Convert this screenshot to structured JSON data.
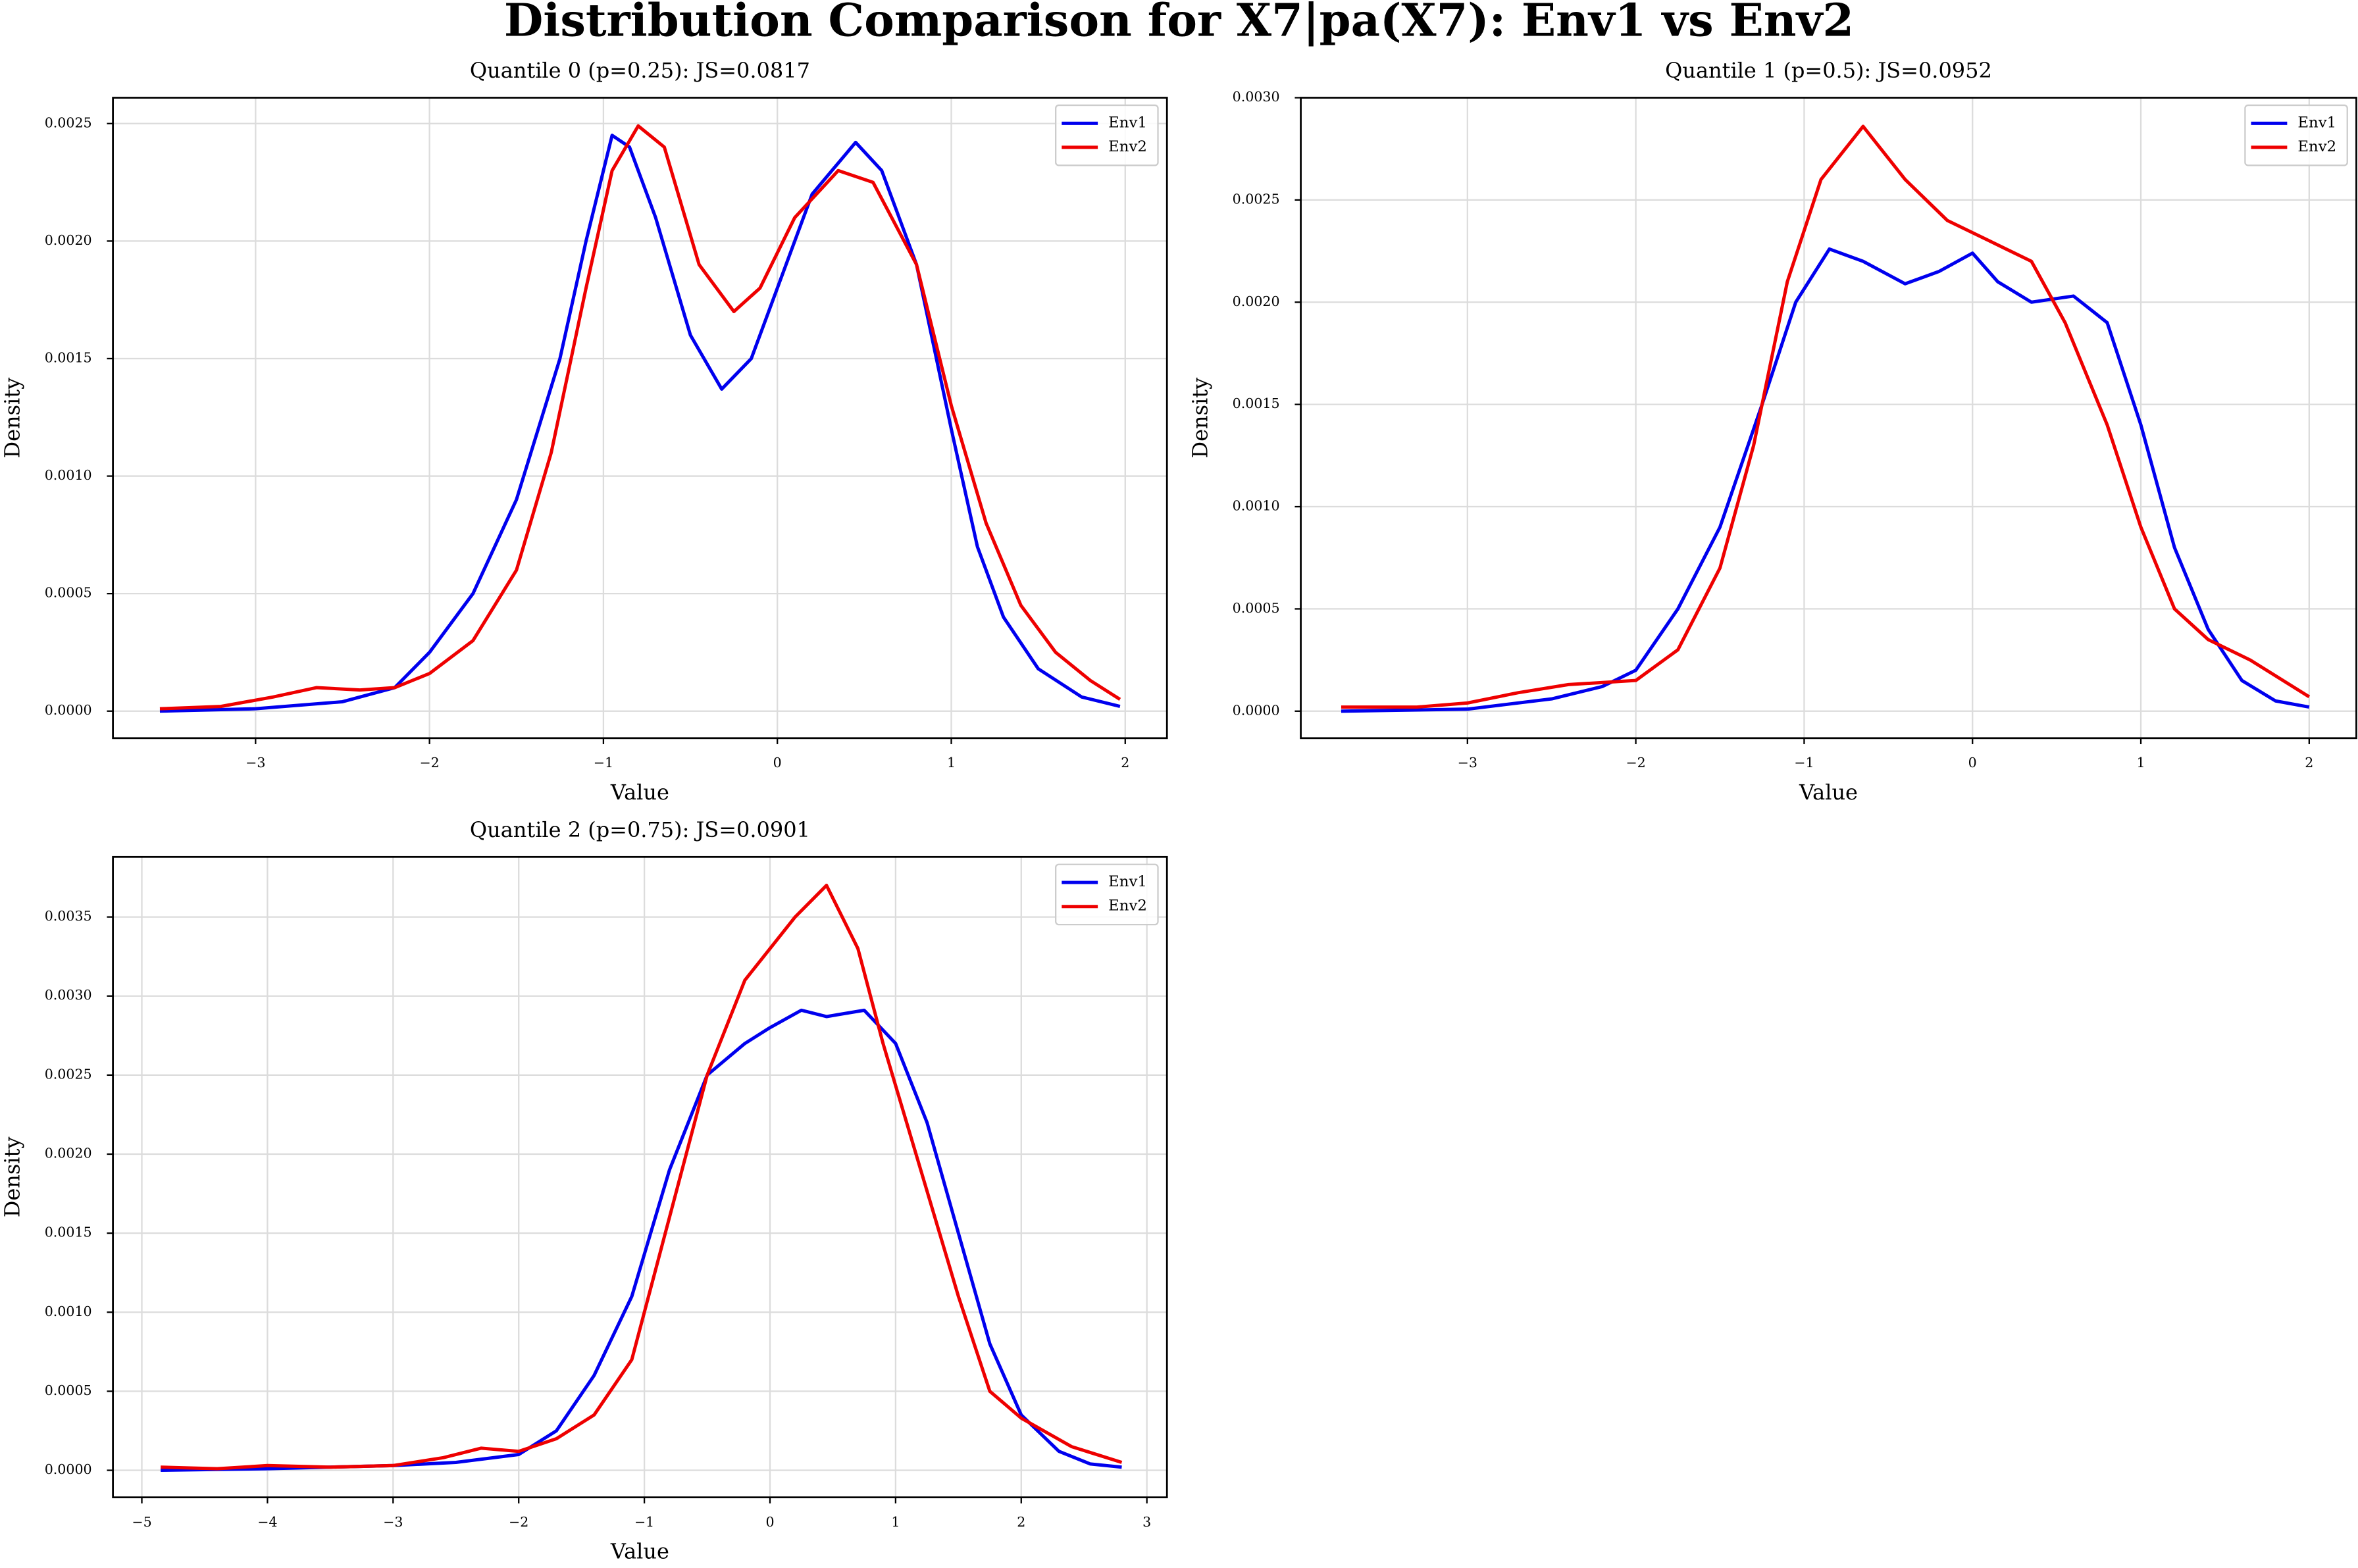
{
  "title": "Distribution Comparison for X7|pa(X7): Env1 vs Env2",
  "chart_data": [
    {
      "type": "line",
      "title": "Quantile 0 (p=0.25): JS=0.0817",
      "xlabel": "Value",
      "ylabel": "Density",
      "grid": true,
      "legend": "upper right",
      "xlim": [
        -3.82,
        2.24
      ],
      "ylim": [
        -0.000115,
        0.00261
      ],
      "xticks": [
        {
          "value": -3,
          "label": "−3"
        },
        {
          "value": -2,
          "label": "−2"
        },
        {
          "value": -1,
          "label": "−1"
        },
        0,
        1,
        2
      ],
      "yticks": [
        {
          "value": 0,
          "label": "0.0000"
        },
        {
          "value": 0.0005,
          "label": "0.0005"
        },
        {
          "value": 0.001,
          "label": "0.0010"
        },
        {
          "value": 0.0015,
          "label": "0.0015"
        },
        {
          "value": 0.002,
          "label": "0.0020"
        },
        {
          "value": 0.0025,
          "label": "0.0025"
        }
      ],
      "series": [
        {
          "name": "Env1",
          "color": "#0000ee",
          "x": [
            -3.55,
            -3.0,
            -2.5,
            -2.2,
            -2.0,
            -1.75,
            -1.5,
            -1.25,
            -1.1,
            -0.95,
            -0.85,
            -0.7,
            -0.5,
            -0.32,
            -0.15,
            0.0,
            0.2,
            0.45,
            0.6,
            0.8,
            1.0,
            1.15,
            1.3,
            1.5,
            1.75,
            1.97
          ],
          "values": [
            0.0,
            1e-05,
            4e-05,
            0.0001,
            0.00025,
            0.0005,
            0.0009,
            0.0015,
            0.002,
            0.00245,
            0.0024,
            0.0021,
            0.0016,
            0.00137,
            0.0015,
            0.0018,
            0.0022,
            0.00242,
            0.0023,
            0.0019,
            0.0012,
            0.0007,
            0.0004,
            0.00018,
            6e-05,
            2e-05
          ]
        },
        {
          "name": "Env2",
          "color": "#ee0000",
          "x": [
            -3.55,
            -3.2,
            -2.9,
            -2.65,
            -2.4,
            -2.2,
            -2.0,
            -1.75,
            -1.5,
            -1.3,
            -1.1,
            -0.95,
            -0.8,
            -0.65,
            -0.45,
            -0.25,
            -0.1,
            0.1,
            0.35,
            0.55,
            0.8,
            1.0,
            1.2,
            1.4,
            1.6,
            1.8,
            1.97
          ],
          "values": [
            1e-05,
            2e-05,
            6e-05,
            0.0001,
            9e-05,
            0.0001,
            0.00016,
            0.0003,
            0.0006,
            0.0011,
            0.0018,
            0.0023,
            0.00249,
            0.0024,
            0.0019,
            0.0017,
            0.0018,
            0.0021,
            0.0023,
            0.00225,
            0.0019,
            0.0013,
            0.0008,
            0.00045,
            0.00025,
            0.00013,
            5e-05
          ]
        }
      ]
    },
    {
      "type": "line",
      "title": "Quantile 1 (p=0.5): JS=0.0952",
      "xlabel": "Value",
      "ylabel": "Density",
      "grid": true,
      "legend": "upper right",
      "xlim": [
        -3.99,
        2.28
      ],
      "ylim": [
        -0.000132,
        0.003
      ],
      "xticks": [
        {
          "value": -3,
          "label": "−3"
        },
        {
          "value": -2,
          "label": "−2"
        },
        {
          "value": -1,
          "label": "−1"
        },
        0,
        1,
        2
      ],
      "yticks": [
        {
          "value": 0,
          "label": "0.0000"
        },
        {
          "value": 0.0005,
          "label": "0.0005"
        },
        {
          "value": 0.001,
          "label": "0.0010"
        },
        {
          "value": 0.0015,
          "label": "0.0015"
        },
        {
          "value": 0.002,
          "label": "0.0020"
        },
        {
          "value": 0.0025,
          "label": "0.0025"
        },
        {
          "value": 0.003,
          "label": "0.0030"
        }
      ],
      "series": [
        {
          "name": "Env1",
          "color": "#0000ee",
          "x": [
            -3.75,
            -3.0,
            -2.5,
            -2.2,
            -2.0,
            -1.75,
            -1.5,
            -1.25,
            -1.05,
            -0.85,
            -0.65,
            -0.4,
            -0.2,
            0.0,
            0.15,
            0.35,
            0.6,
            0.8,
            1.0,
            1.2,
            1.4,
            1.6,
            1.8,
            2.0
          ],
          "values": [
            0.0,
            1e-05,
            6e-05,
            0.00012,
            0.0002,
            0.0005,
            0.0009,
            0.0015,
            0.002,
            0.00226,
            0.0022,
            0.00209,
            0.00215,
            0.00224,
            0.0021,
            0.002,
            0.00203,
            0.0019,
            0.0014,
            0.0008,
            0.0004,
            0.00015,
            5e-05,
            2e-05
          ]
        },
        {
          "name": "Env2",
          "color": "#ee0000",
          "x": [
            -3.75,
            -3.3,
            -3.0,
            -2.7,
            -2.4,
            -2.0,
            -1.75,
            -1.5,
            -1.3,
            -1.1,
            -0.9,
            -0.65,
            -0.4,
            -0.15,
            0.1,
            0.35,
            0.55,
            0.8,
            1.0,
            1.2,
            1.4,
            1.65,
            2.0
          ],
          "values": [
            2e-05,
            2e-05,
            4e-05,
            9e-05,
            0.00013,
            0.00015,
            0.0003,
            0.0007,
            0.0013,
            0.0021,
            0.0026,
            0.00286,
            0.0026,
            0.0024,
            0.0023,
            0.0022,
            0.0019,
            0.0014,
            0.0009,
            0.0005,
            0.00035,
            0.00025,
            7e-05
          ]
        }
      ]
    },
    {
      "type": "line",
      "title": "Quantile 2 (p=0.75): JS=0.0901",
      "xlabel": "Value",
      "ylabel": "Density",
      "grid": true,
      "legend": "upper right",
      "xlim": [
        -5.23,
        3.16
      ],
      "ylim": [
        -0.000171,
        0.00388
      ],
      "xticks": [
        {
          "value": -5,
          "label": "−5"
        },
        {
          "value": -4,
          "label": "−4"
        },
        {
          "value": -3,
          "label": "−3"
        },
        {
          "value": -2,
          "label": "−2"
        },
        {
          "value": -1,
          "label": "−1"
        },
        0,
        1,
        2,
        3
      ],
      "yticks": [
        {
          "value": 0,
          "label": "0.0000"
        },
        {
          "value": 0.0005,
          "label": "0.0005"
        },
        {
          "value": 0.001,
          "label": "0.0010"
        },
        {
          "value": 0.0015,
          "label": "0.0015"
        },
        {
          "value": 0.002,
          "label": "0.0020"
        },
        {
          "value": 0.0025,
          "label": "0.0025"
        },
        {
          "value": 0.003,
          "label": "0.0030"
        },
        {
          "value": 0.0035,
          "label": "0.0035"
        }
      ],
      "series": [
        {
          "name": "Env1",
          "color": "#0000ee",
          "x": [
            -4.85,
            -4.0,
            -3.0,
            -2.5,
            -2.0,
            -1.7,
            -1.4,
            -1.1,
            -0.8,
            -0.5,
            -0.2,
            0.0,
            0.25,
            0.45,
            0.75,
            1.0,
            1.25,
            1.5,
            1.75,
            2.0,
            2.3,
            2.55,
            2.8
          ],
          "values": [
            0.0,
            1e-05,
            3e-05,
            5e-05,
            0.0001,
            0.00025,
            0.0006,
            0.0011,
            0.0019,
            0.0025,
            0.0027,
            0.0028,
            0.00291,
            0.00287,
            0.00291,
            0.0027,
            0.0022,
            0.0015,
            0.0008,
            0.00035,
            0.00012,
            4e-05,
            2e-05
          ]
        },
        {
          "name": "Env2",
          "color": "#ee0000",
          "x": [
            -4.85,
            -4.4,
            -4.0,
            -3.5,
            -3.0,
            -2.6,
            -2.3,
            -2.0,
            -1.7,
            -1.4,
            -1.1,
            -0.8,
            -0.5,
            -0.2,
            0.0,
            0.2,
            0.45,
            0.7,
            0.9,
            1.2,
            1.5,
            1.75,
            2.0,
            2.4,
            2.8
          ],
          "values": [
            2e-05,
            1e-05,
            3e-05,
            2e-05,
            3e-05,
            8e-05,
            0.00014,
            0.00012,
            0.0002,
            0.00035,
            0.0007,
            0.0016,
            0.0025,
            0.0031,
            0.0033,
            0.0035,
            0.0037,
            0.0033,
            0.0027,
            0.0019,
            0.0011,
            0.0005,
            0.00033,
            0.00015,
            5e-05
          ]
        }
      ]
    }
  ]
}
